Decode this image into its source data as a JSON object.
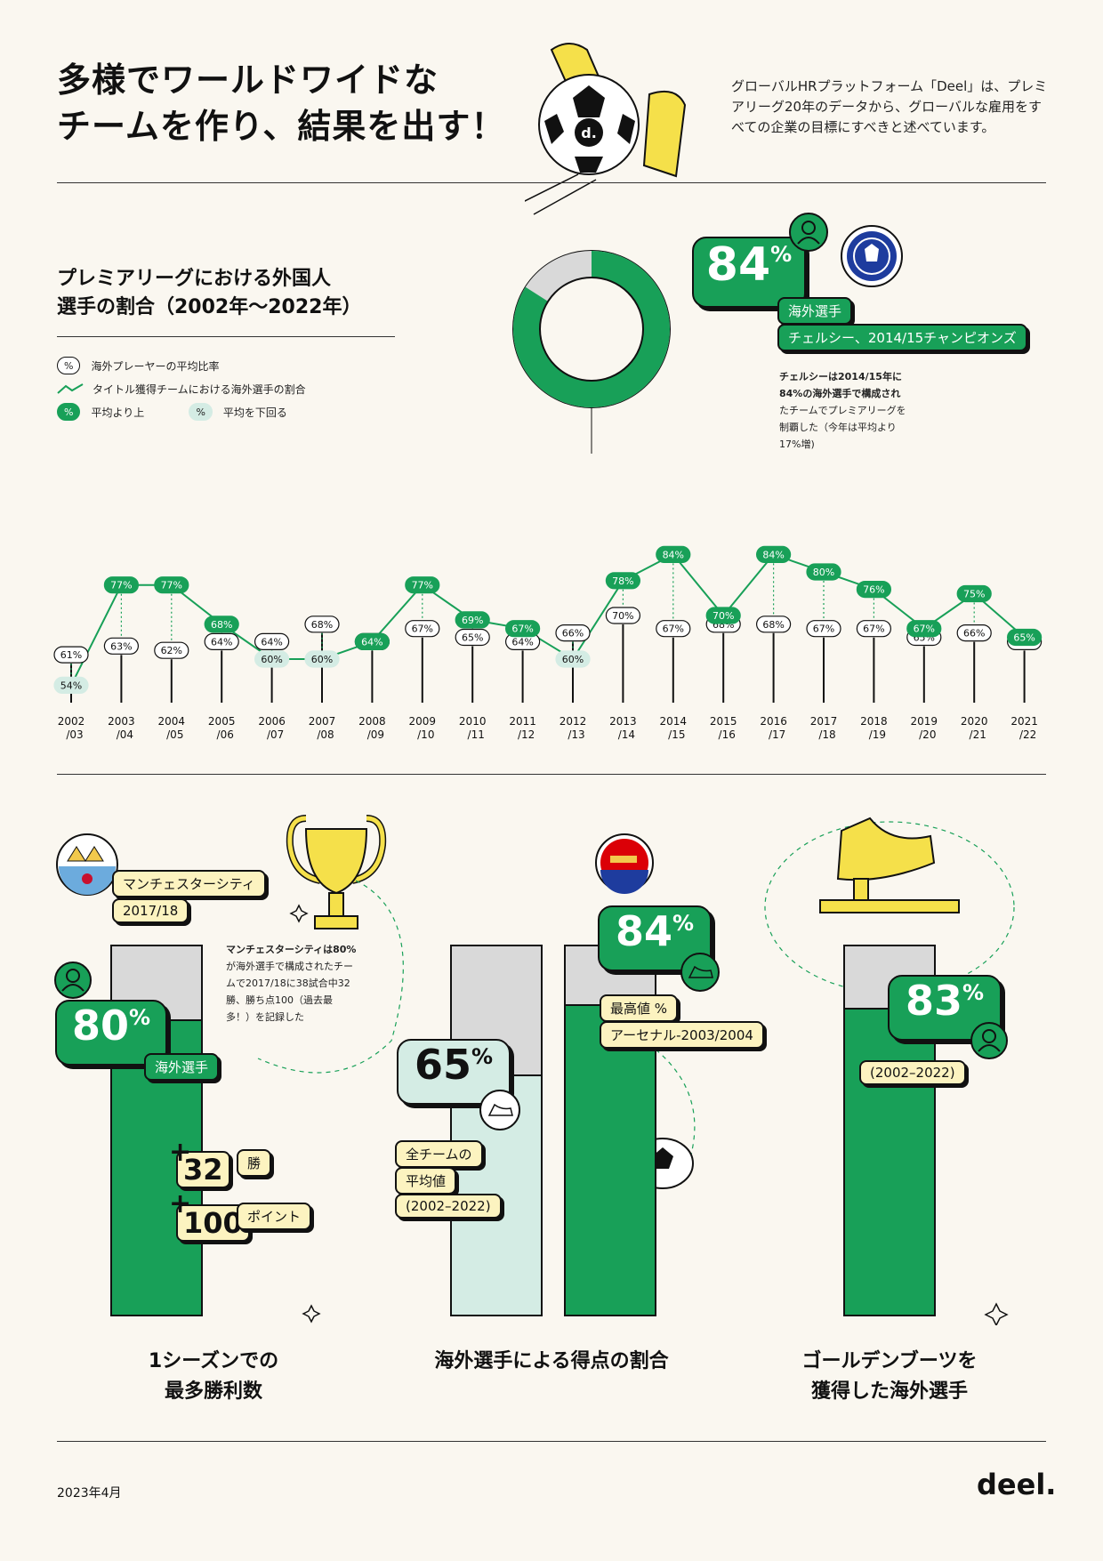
{
  "title_line1": "多様でワールドワイドな",
  "title_line2": "チームを作り、結果を出す！",
  "intro": "グローバルHRプラットフォーム「Deel」は、プレミアリーグ20年のデータから、グローバルな雇用をすべての企業の目標にすべきと述べています。",
  "ball_logo": "d.",
  "section1": {
    "title_line1": "プレミアリーグにおける外国人",
    "title_line2": "選手の割合（2002年〜2022年）",
    "legend": {
      "pct_symbol": "%",
      "avg": "海外プレーヤーの平均比率",
      "title_team": "タイトル獲得チームにおける海外選手の割合",
      "above": "平均より上",
      "below": "平均を下回る"
    },
    "donut": {
      "value": 84,
      "big_value": "84",
      "pct": "%",
      "label": "海外選手",
      "team": "チェルシー、2014/15チャンピオンズ",
      "note": [
        "チェルシーは2014/15年に",
        "84%の海外選手で構成され",
        "たチームでプレミアリーグを",
        "制覇した（今年は平均より",
        "17%増)"
      ]
    }
  },
  "chart_data": {
    "type": "line",
    "categories": [
      "2002/03",
      "2003/04",
      "2004/05",
      "2005/06",
      "2006/07",
      "2007/08",
      "2008/09",
      "2009/10",
      "2010/11",
      "2011/12",
      "2012/13",
      "2013/14",
      "2014/15",
      "2015/16",
      "2016/17",
      "2017/18",
      "2018/19",
      "2019/20",
      "2020/21",
      "2021/22"
    ],
    "x_labels_top": [
      "2002",
      "2003",
      "2004",
      "2005",
      "2006",
      "2007",
      "2008",
      "2009",
      "2010",
      "2011",
      "2012",
      "2013",
      "2014",
      "2015",
      "2016",
      "2017",
      "2018",
      "2019",
      "2020",
      "2021"
    ],
    "x_labels_bottom": [
      "/03",
      "/04",
      "/05",
      "/06",
      "/07",
      "/08",
      "/09",
      "/10",
      "/11",
      "/12",
      "/13",
      "/14",
      "/15",
      "/16",
      "/17",
      "/18",
      "/19",
      "/20",
      "/21",
      "/22"
    ],
    "series": [
      {
        "values": [
          61,
          63,
          62,
          64,
          64,
          68,
          64,
          67,
          65,
          64,
          66,
          70,
          67,
          68,
          68,
          67,
          67,
          65,
          66,
          64
        ]
      },
      {
        "values": [
          54,
          77,
          77,
          68,
          60,
          60,
          64,
          77,
          69,
          67,
          60,
          78,
          84,
          70,
          84,
          80,
          76,
          67,
          75,
          65
        ]
      }
    ],
    "ylim": [
      50,
      90
    ],
    "colors": {
      "green": "#18A058",
      "mint": "#D4ECE4"
    }
  },
  "section2": {
    "city": {
      "team": "マンチェスターシティ",
      "season": "2017/18",
      "big_value": "80",
      "pct": "%",
      "label": "海外選手",
      "value": 80,
      "note": [
        "マンチェスターシティは80%",
        "が海外選手で構成されたチー",
        "ムで2017/18に38試合中32",
        "勝、勝ち点100（過去最",
        "多！）を記録した"
      ],
      "wins": "32",
      "wins_label": "勝",
      "points": "100",
      "points_label": "ポイント",
      "plus": "+",
      "caption_line1": "1シーズンでの",
      "caption_line2": "最多勝利数"
    },
    "goals": {
      "avg_value": "65",
      "avg": 65,
      "avg_label1": "全チームの",
      "avg_label2": "平均値",
      "avg_label3": "(2002–2022)",
      "max_value": "84",
      "max": 84,
      "pct": "%",
      "max_label": "最高値 %",
      "max_team": "アーセナル-2003/2004",
      "caption": "海外選手による得点の割合"
    },
    "boot": {
      "big_value": "83",
      "value": 83,
      "pct": "%",
      "period": "(2002–2022)",
      "caption_line1": "ゴールデンブーツを",
      "caption_line2": "獲得した海外選手"
    }
  },
  "footer": {
    "date": "2023年4月",
    "brand": "deel."
  }
}
